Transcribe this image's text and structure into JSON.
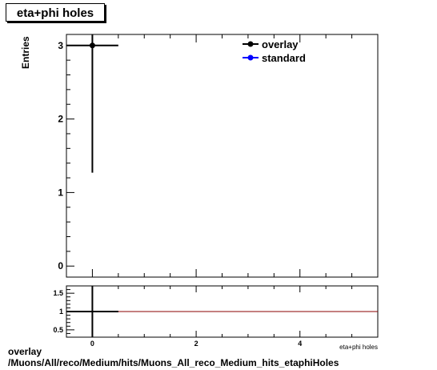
{
  "title": "eta+phi holes",
  "caption": {
    "line1": "overlay",
    "line2": "/Muons/All/reco/Medium/hits/Muons_All_reco_Medium_hits_etaphiHoles"
  },
  "chart_data": [
    {
      "type": "scatter",
      "ylabel": "Entries",
      "xlabel": "eta+phi holes",
      "xlim": [
        -0.5,
        5.5
      ],
      "ylim": [
        -0.15,
        3.15
      ],
      "x_ticks": [
        0,
        2,
        4
      ],
      "x_tick_labels": [
        "0",
        "2",
        "4"
      ],
      "y_ticks": [
        0,
        1,
        2,
        3
      ],
      "y_tick_labels": [
        "0",
        "1",
        "2",
        "3"
      ],
      "legend_position": "top-right",
      "series": [
        {
          "name": "overlay",
          "color": "#000000",
          "points": [
            {
              "x": 0,
              "y": 3,
              "xlo": -0.5,
              "xhi": 0.5,
              "yerr_lo": 1.73,
              "yerr_hi": 1.73
            }
          ]
        },
        {
          "name": "standard",
          "color": "#0000ff",
          "points": []
        }
      ]
    },
    {
      "type": "line",
      "xlim": [
        -0.5,
        5.5
      ],
      "ylim": [
        0.3,
        1.7
      ],
      "x_ticks": [
        0,
        2,
        4
      ],
      "x_tick_labels": [
        "0",
        "2",
        "4"
      ],
      "y_ticks": [
        0.5,
        1,
        1.5
      ],
      "y_tick_labels": [
        "0.5",
        "1",
        "1.5"
      ],
      "reference_line": {
        "y": 1,
        "color": "#8b0000"
      },
      "ratio_points": [
        {
          "x": 0,
          "y": 1,
          "xlo": -0.5,
          "xhi": 0.5,
          "yerr": 1.0
        }
      ]
    }
  ]
}
